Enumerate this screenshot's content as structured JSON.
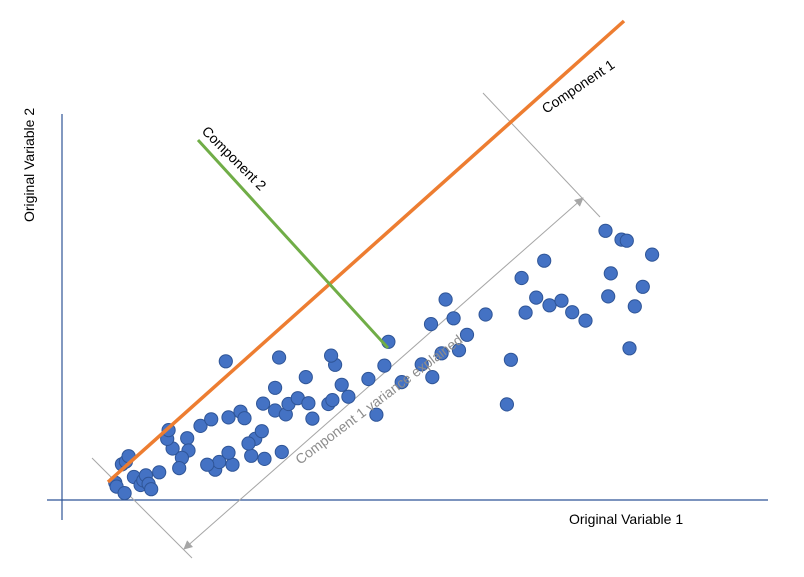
{
  "labels": {
    "x_axis": "Original Variable 1",
    "y_axis": "Original Variable 2",
    "component1": "Component 1",
    "component2": "Component 2",
    "variance": "Component 1 variance explained"
  },
  "colors": {
    "axis": "#2f5597",
    "points": "#4472c4",
    "point_stroke": "#2f5597",
    "component1": "#ed7d31",
    "component2": "#70ad47",
    "dimension": "#a6a6a6"
  },
  "chart_data": {
    "type": "scatter",
    "x": [
      1.0,
      1.1,
      1.7,
      1.5,
      1.8,
      2.0,
      2.4,
      2.9,
      3.1,
      3.3,
      3.5,
      3.7,
      4.3,
      5.3,
      4.9,
      5.0,
      6.4,
      7.4,
      8.2,
      9.5,
      10.4,
      11.5,
      11.2,
      13.0,
      13.8,
      15.8,
      6.5,
      6.0,
      5.8,
      8.5,
      8.8,
      9.8,
      7.9,
      9.5,
      11.0,
      12.2,
      13.5,
      12.0,
      10.7,
      12.1,
      13.0,
      14.0,
      14.7,
      15.5,
      17.0,
      18.0,
      17.5,
      17.2,
      18.5,
      20.0,
      21.2,
      21.5,
      20.6,
      22.5,
      24.0,
      24.8,
      25.5,
      24.7,
      26.8,
      27.4,
      26.4,
      25.8,
      28.8,
      30.4,
      30.7,
      31.8,
      32.6,
      33.6,
      31.5,
      34.5,
      33.2,
      35.3,
      36.3,
      38.0,
      37.8,
      39.0,
      38.2,
      40.0,
      39.6,
      40.6,
      41.3,
      39.4,
      17.3,
      15.3,
      13.3,
      9.3
    ],
    "y": [
      4.0,
      3.0,
      1.3,
      8.8,
      9.5,
      10.9,
      5.5,
      3.4,
      4.6,
      5.9,
      3.7,
      2.3,
      6.7,
      12.9,
      15.4,
      17.7,
      15.6,
      18.8,
      20.5,
      21.0,
      22.5,
      15.4,
      11.0,
      22.8,
      21.8,
      20.7,
      12.4,
      10.5,
      7.8,
      7.4,
      9.4,
      8.7,
      8.7,
      11.8,
      14.2,
      10.2,
      12.0,
      17.4,
      20.8,
      24.6,
      28.7,
      24.5,
      26.0,
      24.7,
      24.5,
      29.5,
      34.7,
      37.1,
      26.4,
      31.0,
      34.5,
      40.7,
      21.7,
      30.2,
      34.8,
      31.5,
      37.7,
      45.3,
      38.5,
      42.5,
      46.8,
      51.7,
      47.8,
      24.4,
      36.0,
      48.3,
      52.2,
      50.2,
      57.3,
      51.4,
      61.8,
      48.4,
      46.2,
      52.5,
      69.6,
      67.3,
      58.5,
      49.9,
      39.0,
      55.0,
      63.4,
      67.0,
      25.5,
      31.5,
      36.6,
      35.6
    ],
    "xlabel": "Original Variable 1",
    "ylabel": "Original Variable 2",
    "xlim": [
      -3,
      50
    ],
    "ylim": [
      -0.5,
      100
    ],
    "grid": false
  }
}
